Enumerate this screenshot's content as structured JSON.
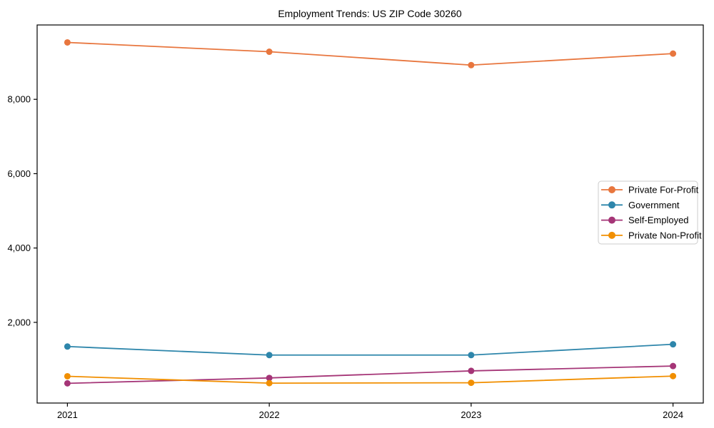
{
  "figure": {
    "background": "#ffffff",
    "axis_color": "#000000",
    "text_color": "#000000",
    "legend_border_color": "#cccccc",
    "legend_background": "#ffffff"
  },
  "chart_data": {
    "type": "line",
    "title": "Employment Trends: US ZIP Code 30260",
    "xlabel": "",
    "ylabel": "",
    "x": [
      2021,
      2022,
      2023,
      2024
    ],
    "x_tick_labels": [
      "2021",
      "2022",
      "2023",
      "2024"
    ],
    "y_ticks": [
      2000,
      4000,
      6000,
      8000
    ],
    "y_tick_labels": [
      "2,000",
      "4,000",
      "6,000",
      "8,000"
    ],
    "xlim": [
      2020.85,
      2024.15
    ],
    "ylim": [
      -170,
      10000
    ],
    "grid": false,
    "marker": "circle",
    "legend_position": "center-right",
    "series": [
      {
        "name": "Private For-Profit",
        "color": "#E8763E",
        "values": [
          9530,
          9280,
          8920,
          9230
        ]
      },
      {
        "name": "Government",
        "color": "#2E86AB",
        "values": [
          1350,
          1120,
          1120,
          1410
        ]
      },
      {
        "name": "Self-Employed",
        "color": "#A53577",
        "values": [
          360,
          505,
          695,
          825
        ]
      },
      {
        "name": "Private Non-Profit",
        "color": "#F18F01",
        "values": [
          550,
          365,
          375,
          555
        ]
      }
    ]
  }
}
